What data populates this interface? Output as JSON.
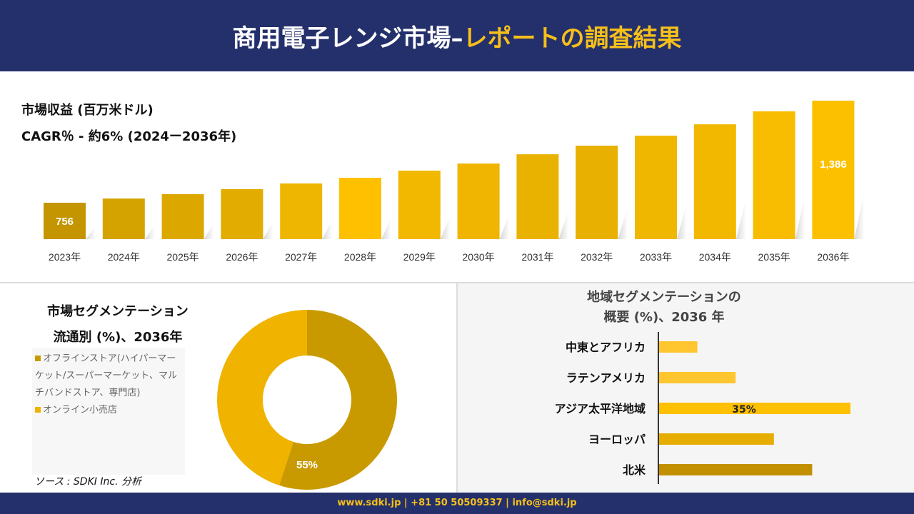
{
  "header": {
    "title_main": "商用電子レンジ市場–",
    "title_highlight": "レポートの調査結果"
  },
  "revenue": {
    "title": "市場収益 (百万米ドル)",
    "cagr": "CAGR％ - 約6% (2024ー2036年)"
  },
  "distribution": {
    "title_line1": "市場セグメンテーション",
    "title_line2": "流通別 (%)、2036年"
  },
  "region": {
    "title_line1": "地域セグメンテーションの",
    "title_line2": "概要 (%)、2036 年"
  },
  "source": "ソース : SDKI Inc. 分析",
  "footer": "www.sdki.jp | +81 50 50509337 | info@sdki.jp",
  "colors": {
    "navy": "#24306b",
    "gold": "#f6bf1a",
    "dark_gold": "#c49500"
  },
  "chart_data": [
    {
      "type": "bar",
      "title": "市場収益 (百万米ドル)",
      "categories": [
        "2023年",
        "2024年",
        "2025年",
        "2026年",
        "2027年",
        "2028年",
        "2029年",
        "2030年",
        "2031年",
        "2032年",
        "2033年",
        "2034年",
        "2035年",
        "2036年"
      ],
      "values": [
        756,
        782,
        809,
        840,
        875,
        910,
        954,
        998,
        1055,
        1108,
        1170,
        1240,
        1320,
        1386
      ],
      "data_labels": {
        "0": "756",
        "13": "1,386"
      },
      "colors": [
        "#c49500",
        "#d4a300",
        "#dca800",
        "#e2ac00",
        "#eeb600",
        "#ffc000",
        "#f2b800",
        "#efb500",
        "#eab200",
        "#e8b000",
        "#f0b700",
        "#f2b800",
        "#f8bd00",
        "#fcc000"
      ]
    },
    {
      "type": "pie",
      "title": "市場セグメンテーション 流通別 (%)、2036年",
      "categories": [
        "オフラインストア(ハイパーマーケット/スーパーマーケット、マルチバンドストア、専門店)",
        "オンライン小売店"
      ],
      "values": [
        55,
        45
      ],
      "data_labels": [
        "55%",
        ""
      ],
      "colors": [
        "#c89a00",
        "#efb300"
      ],
      "legend": "left"
    },
    {
      "type": "bar",
      "orientation": "horizontal",
      "title": "地域セグメンテーションの概要 (%)、2036 年",
      "categories": [
        "中東とアフリカ",
        "ラテンアメリカ",
        "アジア太平洋地域",
        "ヨーロッパ",
        "北米"
      ],
      "values": [
        7,
        14,
        35,
        21,
        28
      ],
      "data_labels": [
        "",
        "",
        "35%",
        "",
        ""
      ],
      "colors": [
        "#ffc630",
        "#ffc630",
        "#ffc000",
        "#e6ac00",
        "#c28f00"
      ]
    }
  ]
}
